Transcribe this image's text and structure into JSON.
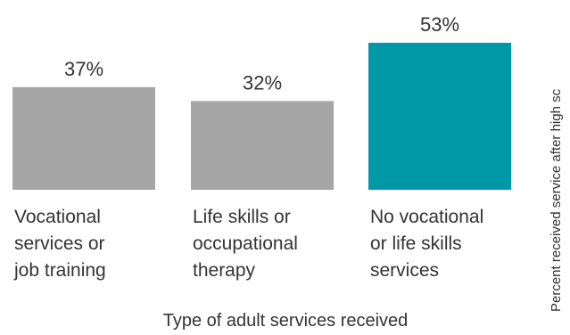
{
  "chart_data": {
    "type": "bar",
    "categories": [
      [
        "Vocational",
        "services or",
        "job training"
      ],
      [
        "Life skills or",
        "occupational",
        "therapy"
      ],
      [
        "No vocational",
        "or life skills",
        "services"
      ]
    ],
    "values": [
      37,
      32,
      53
    ],
    "value_labels": [
      "37%",
      "32%",
      "53%"
    ],
    "bar_colors": [
      "#a6a6a6",
      "#a6a6a6",
      "#0097a7"
    ],
    "xlabel": "Type of adult services received",
    "ylabel": "Percent received service after high sc",
    "ylim": [
      0,
      53
    ],
    "grid": false,
    "legend": "none"
  }
}
